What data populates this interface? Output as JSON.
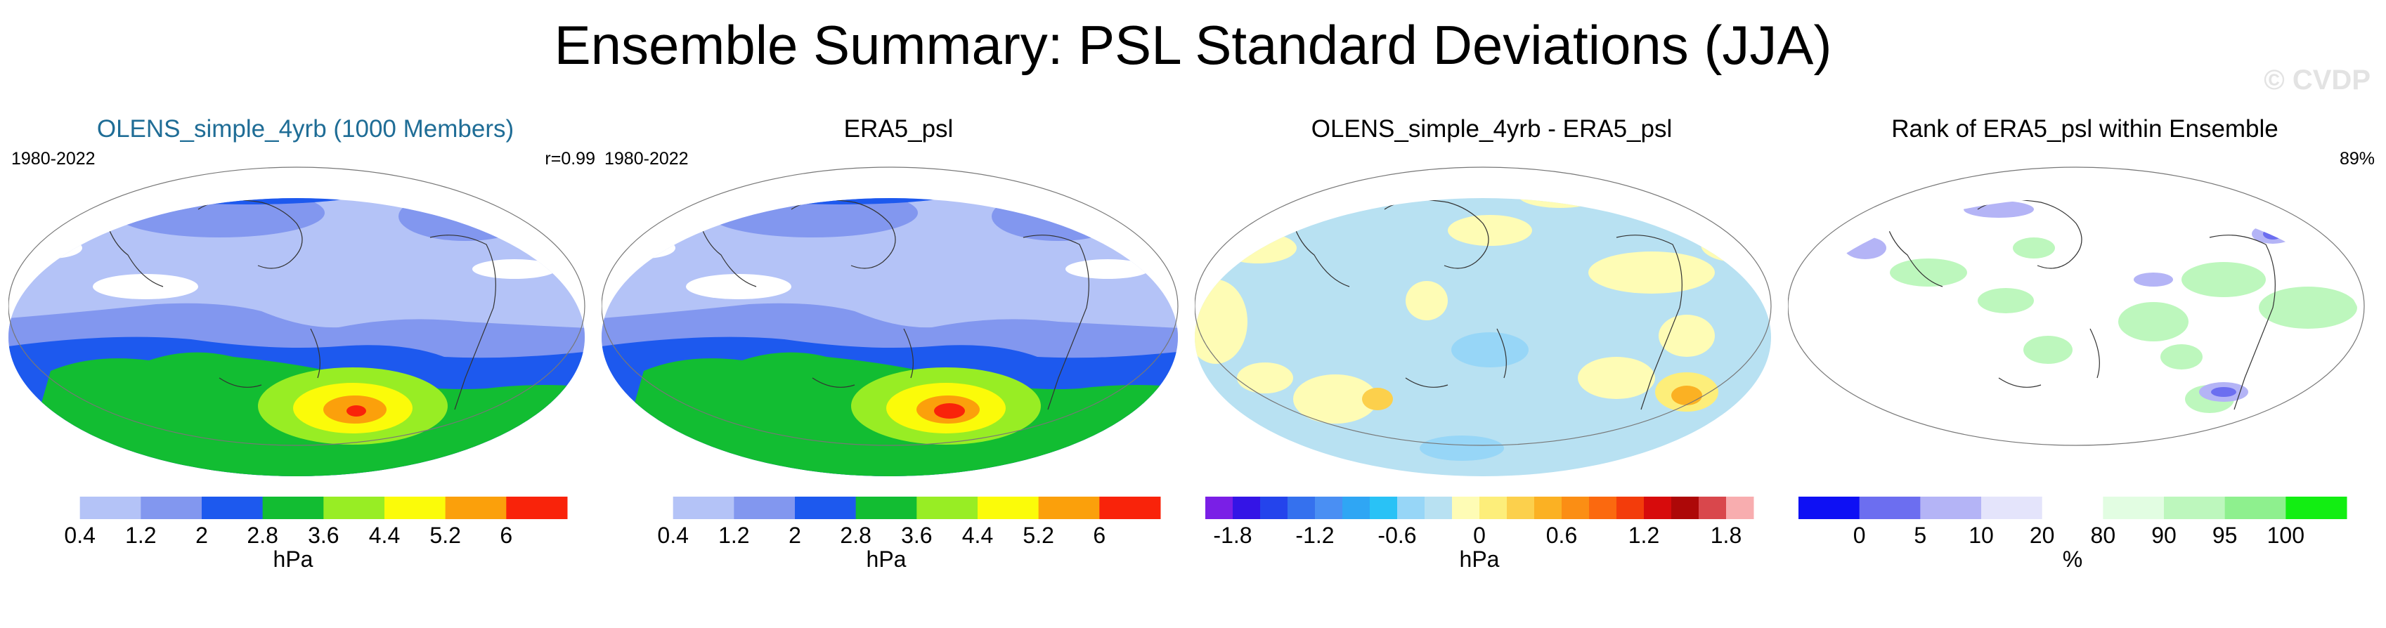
{
  "title": "Ensemble Summary: PSL Standard Deviations (JJA)",
  "watermark": "© CVDP",
  "panels": [
    {
      "title": "OLENS_simple_4yrb (1000 Members)",
      "left_label": "1980-2022",
      "right_label": "r=0.99",
      "title_color": "#1f6d96"
    },
    {
      "title": "ERA5_psl",
      "left_label": "1980-2022",
      "right_label": ""
    },
    {
      "title": "OLENS_simple_4yrb - ERA5_psl",
      "left_label": "",
      "right_label": ""
    },
    {
      "title": "Rank of ERA5_psl within Ensemble",
      "left_label": "",
      "right_label": "89%"
    }
  ],
  "chart_data": [
    {
      "type": "heatmap",
      "title": "OLENS_simple_4yrb (1000 Members)",
      "period": "1980-2022",
      "pattern_correlation": 0.99,
      "colorbar": {
        "label": "hPa",
        "ticks": [
          "0.4",
          "1.2",
          "2",
          "2.8",
          "3.6",
          "4.4",
          "5.2",
          "6"
        ],
        "colors": [
          "#ffffff",
          "#b4c3f7",
          "#8297ef",
          "#1d59ee",
          "#12bd32",
          "#98ed24",
          "#fbfb09",
          "#fba00b",
          "#f9230a"
        ]
      }
    },
    {
      "type": "heatmap",
      "title": "ERA5_psl",
      "period": "1980-2022",
      "colorbar": {
        "label": "hPa",
        "ticks": [
          "0.4",
          "1.2",
          "2",
          "2.8",
          "3.6",
          "4.4",
          "5.2",
          "6"
        ],
        "colors": [
          "#ffffff",
          "#b4c3f7",
          "#8297ef",
          "#1d59ee",
          "#12bd32",
          "#98ed24",
          "#fbfb09",
          "#fba00b",
          "#f9230a"
        ]
      }
    },
    {
      "type": "heatmap",
      "title": "OLENS_simple_4yrb - ERA5_psl",
      "colorbar": {
        "label": "hPa",
        "ticks": [
          "-1.8",
          "-1.2",
          "-0.6",
          "0",
          "0.6",
          "1.2",
          "1.8"
        ],
        "colors": [
          "#7a1fe6",
          "#3414e6",
          "#2444ec",
          "#3571ee",
          "#4a8ff3",
          "#2fa6f4",
          "#29c2f6",
          "#97d6f7",
          "#b8e1f2",
          "#fefcb5",
          "#fdee7a",
          "#fcd04c",
          "#fbb123",
          "#fb8e14",
          "#fb690f",
          "#f33c0b",
          "#d70b0c",
          "#ad0808",
          "#d9474c",
          "#f8adaf"
        ]
      }
    },
    {
      "type": "heatmap",
      "title": "Rank of ERA5_psl within Ensemble",
      "summary_value": "89%",
      "colorbar": {
        "label": "%",
        "ticks": [
          "0",
          "5",
          "10",
          "20",
          "80",
          "90",
          "95",
          "100"
        ],
        "colors": [
          "#0e10f4",
          "#6c6ef0",
          "#b4b4f6",
          "#e4e4fb",
          "#ffffff",
          "#e2fde2",
          "#bdf7bd",
          "#8ef08e",
          "#12ee12"
        ]
      }
    }
  ]
}
